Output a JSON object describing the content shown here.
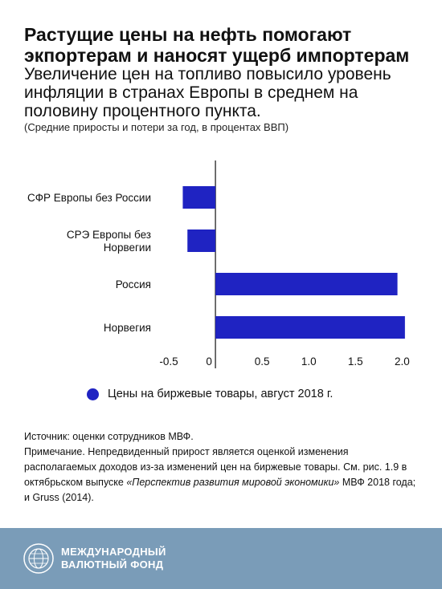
{
  "header": {
    "title": "Растущие цены на нефть помогают экпортерам и наносят ущерб импортерам",
    "subtitle": "Увеличение цен на топливо повысило уровень инфляции в странах Европы в среднем на половину процентного пункта.",
    "units_note": "(Средние приросты и потери за год, в процентах ВВП)"
  },
  "chart_data": {
    "type": "bar",
    "orientation": "horizontal",
    "title": "",
    "categories": [
      "СФР Европы без России",
      "СРЭ Европы без Норвегии",
      "Россия",
      "Норвегия"
    ],
    "category_lines": [
      [
        "СФР Европы без России"
      ],
      [
        "СРЭ Европы без",
        "Норвегии"
      ],
      [
        "Россия"
      ],
      [
        "Норвегия"
      ]
    ],
    "series": [
      {
        "name": "Цены на биржевые товары, август 2018 г.",
        "values": [
          -0.35,
          -0.3,
          1.95,
          2.03
        ]
      }
    ],
    "xlim": [
      -0.5,
      2.1
    ],
    "xticks": [
      -0.5,
      0,
      0.5,
      1.0,
      1.5,
      2.0
    ],
    "xtick_labels": [
      "-0.5",
      "0",
      "0.5",
      "1.0",
      "1.5",
      "2.0"
    ],
    "grid": false,
    "legend_position": "bottom",
    "bar_color": "#1f23c2"
  },
  "legend": {
    "label": "Цены на биржевые товары, август 2018 г."
  },
  "source": {
    "line1": "Источник: оценки сотрудников МВФ.",
    "note_prefix": "Примечание. Непредвиденный прирост является оценкой изменения располагаемых доходов из-за изменений цен на биржевые товары. См. рис. 1.9 в октябрьском выпуске ",
    "note_italic": "«Перспектив развития мировой экономики»",
    "note_suffix": " МВФ 2018 года; и Gruss (2014)."
  },
  "footer": {
    "org_line1": "МЕЖДУНАРОДНЫЙ",
    "org_line2": "ВАЛЮТНЫЙ ФОНД",
    "logo_icon": "imf-globe-seal-icon",
    "background": "#7a9cb8"
  }
}
